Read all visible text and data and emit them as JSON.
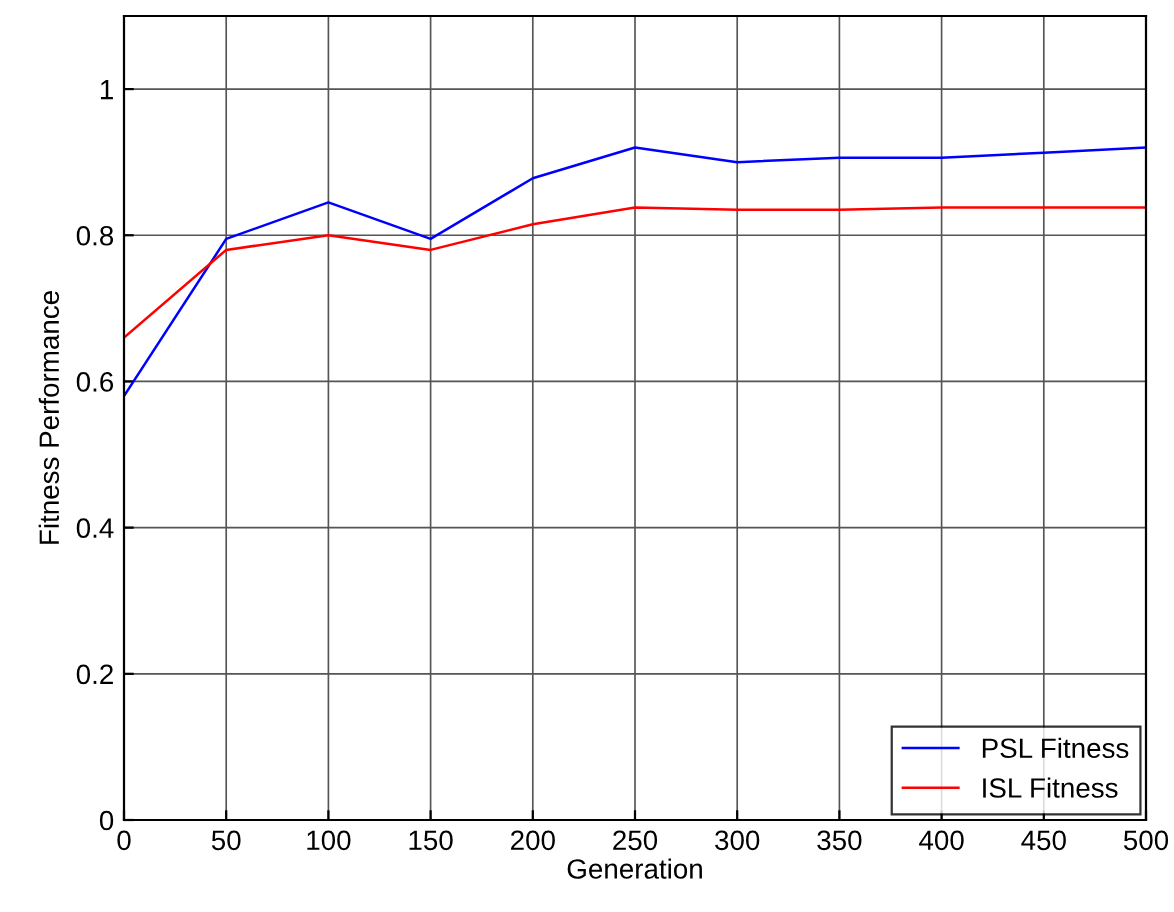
{
  "chart_data": {
    "type": "line",
    "xlabel": "Generation",
    "ylabel": "Fitness Performance",
    "x": [
      0,
      50,
      100,
      150,
      200,
      250,
      300,
      350,
      400,
      450,
      500
    ],
    "series": [
      {
        "name": "PSL Fitness",
        "color": "#0000ff",
        "values": [
          0.58,
          0.795,
          0.845,
          0.795,
          0.878,
          0.92,
          0.9,
          0.906,
          0.906,
          0.913,
          0.92
        ]
      },
      {
        "name": "ISL Fitness",
        "color": "#ff0000",
        "values": [
          0.66,
          0.78,
          0.8,
          0.78,
          0.815,
          0.838,
          0.835,
          0.835,
          0.838,
          0.838,
          0.838
        ]
      }
    ],
    "xlim": [
      0,
      500
    ],
    "xticks": [
      0,
      50,
      100,
      150,
      200,
      250,
      300,
      350,
      400,
      450,
      500
    ],
    "ylim": [
      0,
      1.1
    ],
    "yticks": [
      0,
      0.2,
      0.4,
      0.6,
      0.8,
      1
    ],
    "grid": true,
    "legend": "bottom right"
  }
}
